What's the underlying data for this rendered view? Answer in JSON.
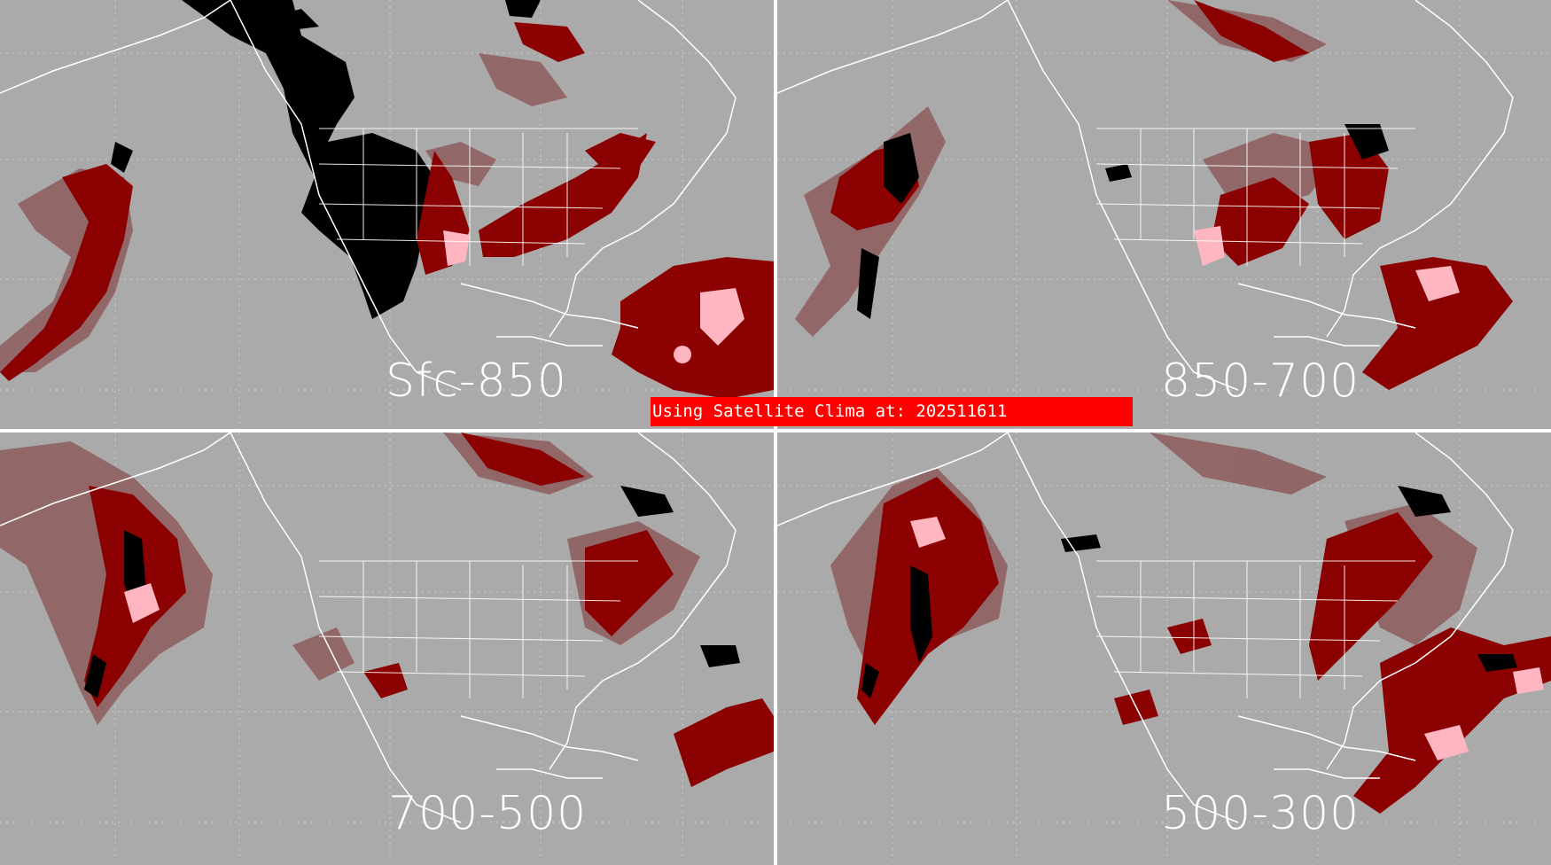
{
  "banner": {
    "text": "Using Satellite Clima at: 202511611"
  },
  "panels": [
    {
      "id": "tl",
      "label": "Sfc-850"
    },
    {
      "id": "tr",
      "label": "850-700"
    },
    {
      "id": "bl",
      "label": "700-500"
    },
    {
      "id": "br",
      "label": "500-300"
    }
  ],
  "colors": {
    "background": "#aaaaaa",
    "coastline": "#ffffff",
    "grid": "#cfcfcf",
    "cloud_dark_red": "#8b0000",
    "cloud_muted_red": "#8f5f5f",
    "cloud_pink": "#ffb6c1",
    "terrain_black": "#000000",
    "banner": "#ff0000"
  }
}
